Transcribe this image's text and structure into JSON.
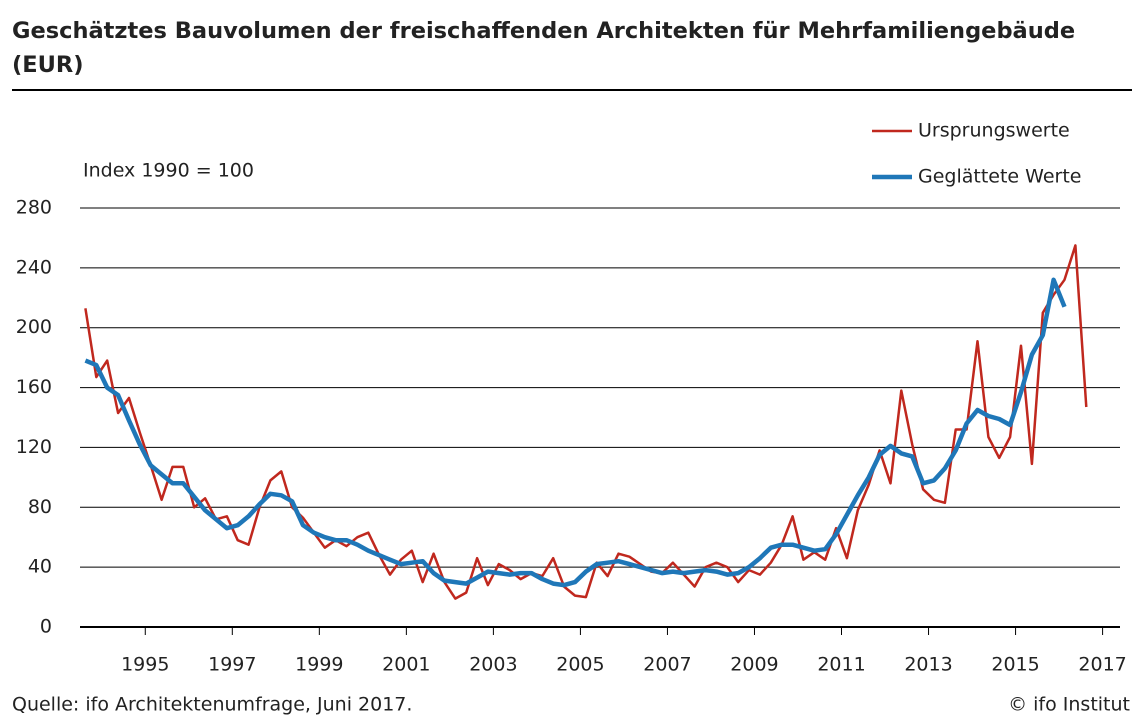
{
  "chart_data": {
    "type": "line",
    "title": "Geschätztes Bauvolumen der freischaffenden Architekten für Mehrfamiliengebäude (EUR)",
    "annotation": "Index 1990 = 100",
    "source": "Quelle: ifo Architektenumfrage, Juni 2017.",
    "credit": "© ifo Institut",
    "x": [
      1993.625,
      1993.875,
      1994.125,
      1994.375,
      1994.625,
      1994.875,
      1995.125,
      1995.375,
      1995.625,
      1995.875,
      1996.125,
      1996.375,
      1996.625,
      1996.875,
      1997.125,
      1997.375,
      1997.625,
      1997.875,
      1998.125,
      1998.375,
      1998.625,
      1998.875,
      1999.125,
      1999.375,
      1999.625,
      1999.875,
      2000.125,
      2000.375,
      2000.625,
      2000.875,
      2001.125,
      2001.375,
      2001.625,
      2001.875,
      2002.125,
      2002.375,
      2002.625,
      2002.875,
      2003.125,
      2003.375,
      2003.625,
      2003.875,
      2004.125,
      2004.375,
      2004.625,
      2004.875,
      2005.125,
      2005.375,
      2005.625,
      2005.875,
      2006.125,
      2006.375,
      2006.625,
      2006.875,
      2007.125,
      2007.375,
      2007.625,
      2007.875,
      2008.125,
      2008.375,
      2008.625,
      2008.875,
      2009.125,
      2009.375,
      2009.625,
      2009.875,
      2010.125,
      2010.375,
      2010.625,
      2010.875,
      2011.125,
      2011.375,
      2011.625,
      2011.875,
      2012.125,
      2012.375,
      2012.625,
      2012.875,
      2013.125,
      2013.375,
      2013.625,
      2013.875,
      2014.125,
      2014.375,
      2014.625,
      2014.875,
      2015.125,
      2015.375,
      2015.625,
      2015.875,
      2016.125,
      2016.375,
      2016.625
    ],
    "series": [
      {
        "name": "Ursprungswerte",
        "color": "#c0281e",
        "width": 2.5,
        "values": [
          213,
          167,
          178,
          143,
          153,
          130,
          108,
          85,
          107,
          107,
          80,
          86,
          72,
          74,
          58,
          55,
          80,
          98,
          104,
          80,
          73,
          63,
          53,
          58,
          54,
          60,
          63,
          48,
          35,
          45,
          51,
          30,
          49,
          30,
          19,
          23,
          46,
          28,
          42,
          38,
          32,
          36,
          34,
          46,
          27,
          21,
          20,
          43,
          34,
          49,
          47,
          42,
          37,
          36,
          43,
          35,
          27,
          40,
          43,
          40,
          30,
          38,
          35,
          43,
          55,
          74,
          45,
          50,
          45,
          66,
          46,
          78,
          95,
          118,
          96,
          158,
          122,
          92,
          85,
          83,
          132,
          132,
          191,
          127,
          113,
          127,
          188,
          109,
          210,
          222,
          232,
          255,
          147
        ]
      },
      {
        "name": "Geglättete Werte",
        "color": "#1f77b8",
        "width": 4.5,
        "values": [
          178,
          175,
          160,
          155,
          138,
          122,
          108,
          102,
          96,
          96,
          87,
          78,
          72,
          66,
          68,
          74,
          82,
          89,
          88,
          84,
          68,
          63,
          60,
          58,
          58,
          55,
          51,
          48,
          45,
          42,
          43,
          44,
          36,
          31,
          30,
          29,
          33,
          37,
          36,
          35,
          36,
          36,
          32,
          29,
          28,
          30,
          37,
          42,
          43,
          44,
          42,
          40,
          38,
          36,
          37,
          36,
          37,
          38,
          37,
          35,
          36,
          40,
          46,
          53,
          55,
          55,
          53,
          51,
          52,
          62,
          75,
          88,
          100,
          115,
          121,
          116,
          114,
          96,
          98,
          106,
          118,
          136,
          145,
          141,
          139,
          135,
          157,
          182,
          195,
          232,
          214,
          null,
          null
        ]
      }
    ],
    "xlim": [
      1993.5,
      2017.4
    ],
    "xticks": [
      1995,
      1997,
      1999,
      2001,
      2003,
      2005,
      2007,
      2009,
      2011,
      2013,
      2015,
      2017
    ],
    "ylim": [
      0,
      280
    ],
    "yticks": [
      0,
      40,
      80,
      120,
      160,
      200,
      240,
      280
    ],
    "grid": true,
    "legend": "top-right"
  }
}
